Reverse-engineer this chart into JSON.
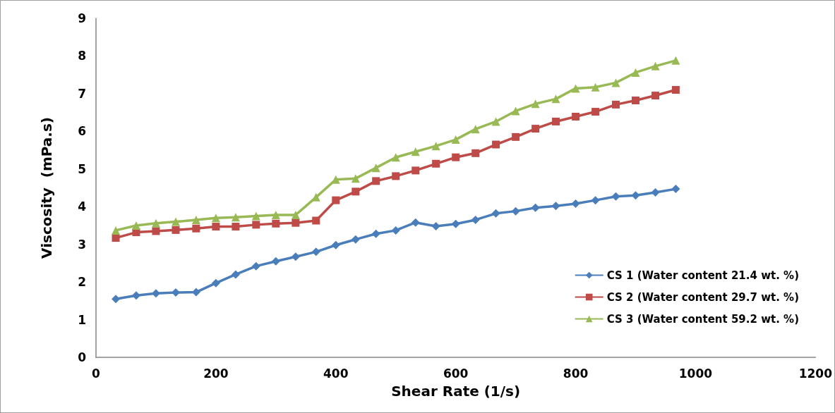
{
  "chart_data": {
    "type": "line",
    "xlabel": "Shear Rate (1/s)",
    "ylabel": "Viscosity  (mPa.s)",
    "x": [
      33,
      67,
      100,
      133,
      167,
      200,
      233,
      267,
      300,
      333,
      367,
      400,
      433,
      467,
      500,
      533,
      567,
      600,
      633,
      667,
      700,
      733,
      767,
      800,
      833,
      867,
      900,
      933,
      967
    ],
    "xlim": [
      0,
      1200
    ],
    "xticks": [
      0,
      200,
      400,
      600,
      800,
      1000,
      1200
    ],
    "ylim": [
      0,
      9
    ],
    "yticks": [
      0,
      1,
      2,
      3,
      4,
      5,
      6,
      7,
      8,
      9
    ],
    "grid": false,
    "legend": "bottom right",
    "line_style": "solid",
    "series": [
      {
        "name": "CS 1 (Water content 21.4 wt. %)",
        "color": "#4a7ebb",
        "marker": "diamond",
        "values": [
          1.55,
          1.64,
          1.7,
          1.72,
          1.73,
          1.97,
          2.2,
          2.42,
          2.55,
          2.67,
          2.8,
          2.98,
          3.13,
          3.28,
          3.37,
          3.58,
          3.48,
          3.54,
          3.65,
          3.82,
          3.88,
          3.97,
          4.02,
          4.08,
          4.17,
          4.27,
          4.3,
          4.38,
          4.47
        ]
      },
      {
        "name": "CS 2 (Water content 29.7 wt. %)",
        "color": "#be4b48",
        "marker": "square",
        "values": [
          3.17,
          3.32,
          3.35,
          3.38,
          3.42,
          3.47,
          3.47,
          3.52,
          3.55,
          3.57,
          3.63,
          4.17,
          4.4,
          4.68,
          4.81,
          4.96,
          5.14,
          5.31,
          5.42,
          5.65,
          5.85,
          6.07,
          6.26,
          6.39,
          6.52,
          6.71,
          6.82,
          6.95,
          7.1
        ]
      },
      {
        "name": "CS 3 (Water content 59.2 wt. %)",
        "color": "#98b954",
        "marker": "triangle",
        "values": [
          3.37,
          3.5,
          3.56,
          3.6,
          3.65,
          3.7,
          3.72,
          3.75,
          3.78,
          3.78,
          4.25,
          4.72,
          4.75,
          5.03,
          5.31,
          5.46,
          5.61,
          5.78,
          6.06,
          6.26,
          6.54,
          6.73,
          6.86,
          7.14,
          7.17,
          7.29,
          7.56,
          7.73,
          7.88
        ]
      }
    ]
  }
}
